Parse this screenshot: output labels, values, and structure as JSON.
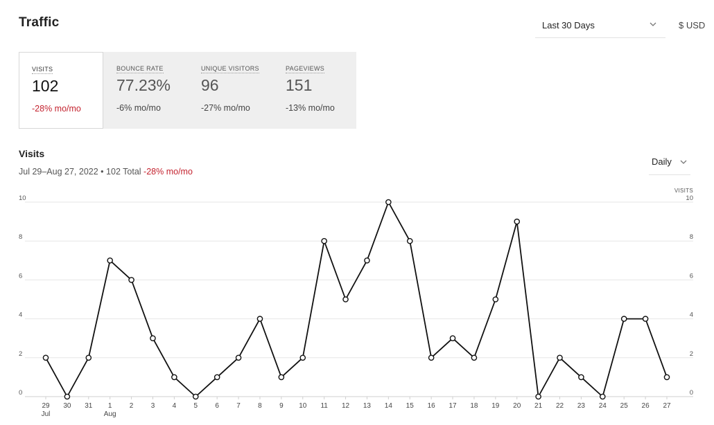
{
  "header": {
    "title": "Traffic",
    "range_select": "Last 30 Days",
    "currency": "$ USD",
    "chevron_icon": "chevron-down-icon"
  },
  "metrics": [
    {
      "label": "VISITS",
      "value": "102",
      "change": "-28% mo/mo",
      "active": true
    },
    {
      "label": "BOUNCE RATE",
      "value": "77.23%",
      "change": "-6% mo/mo",
      "active": false
    },
    {
      "label": "UNIQUE VISITORS",
      "value": "96",
      "change": "-27% mo/mo",
      "active": false
    },
    {
      "label": "PAGEVIEWS",
      "value": "151",
      "change": "-13% mo/mo",
      "active": false
    }
  ],
  "chart_section": {
    "title": "Visits",
    "date_range": "Jul 29–Aug 27, 2022",
    "separator": "•",
    "total": "102 Total",
    "change": "-28% mo/mo",
    "interval_select": "Daily"
  },
  "colors": {
    "negative": "#c4232f",
    "line": "#111111",
    "grid": "#e6e6e6",
    "card_bg": "#efefef"
  },
  "chart_data": {
    "type": "line",
    "right_axis_label": "VISITS",
    "x": [
      "29",
      "30",
      "31",
      "1",
      "2",
      "3",
      "4",
      "5",
      "6",
      "7",
      "8",
      "9",
      "10",
      "11",
      "12",
      "13",
      "14",
      "15",
      "16",
      "17",
      "18",
      "19",
      "20",
      "21",
      "22",
      "23",
      "24",
      "25",
      "26",
      "27"
    ],
    "month_labels": [
      {
        "index": 0,
        "text": "Jul"
      },
      {
        "index": 3,
        "text": "Aug"
      }
    ],
    "series": [
      {
        "values": [
          2,
          0,
          2,
          7,
          6,
          3,
          1,
          0,
          1,
          2,
          4,
          1,
          2,
          8,
          5,
          7,
          10,
          8,
          2,
          3,
          2,
          5,
          9,
          0,
          2,
          1,
          0,
          4,
          4,
          1
        ]
      }
    ],
    "ylim": [
      0,
      10
    ],
    "yticks": [
      0,
      2,
      4,
      6,
      8,
      10
    ],
    "grid": true,
    "legend": "none"
  }
}
